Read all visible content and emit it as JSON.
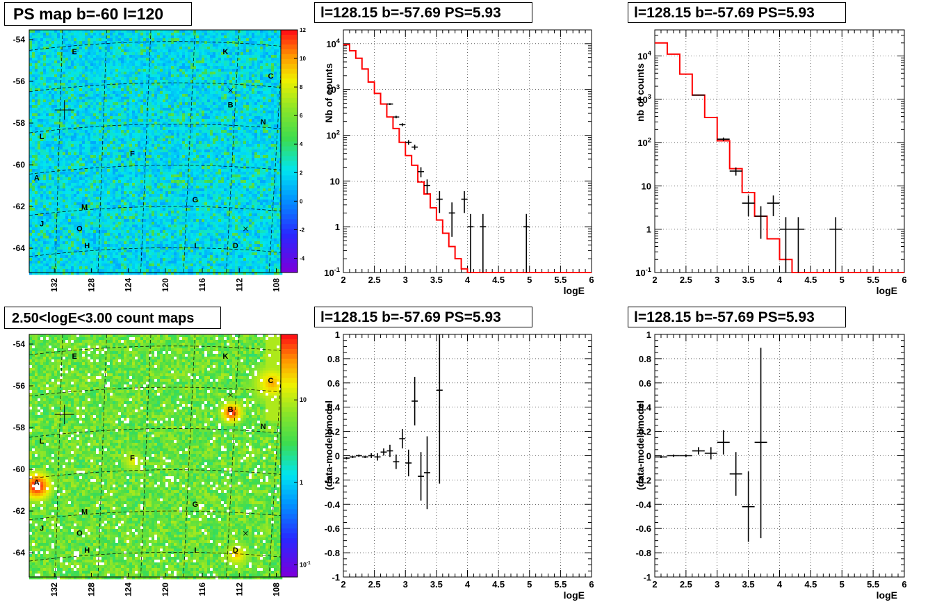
{
  "titles": {
    "ps_map": "PS map b=-60 l=120",
    "count_map": "2.50<logE<3.00 count maps",
    "spec_left": "l=128.15 b=-57.69 PS=5.93",
    "spec_right": "l=128.15 b=-57.69 PS=5.93",
    "res_left": "l=128.15 b=-57.69 PS=5.93",
    "res_right": "l=128.15 b=-57.69 PS=5.93"
  },
  "colors": {
    "model_line": "#ff0000",
    "data_marker": "#000000",
    "grid": "#000000"
  },
  "chart_data": [
    {
      "id": "ps_map",
      "type": "heatmap",
      "title": "PS map b=-60 l=120",
      "x_ticks": [
        "132",
        "128",
        "124",
        "120",
        "116",
        "112",
        "108"
      ],
      "y_ticks": [
        "-54",
        "-56",
        "-58",
        "-60",
        "-62",
        "-64"
      ],
      "colorbar_ticks": [
        "12",
        "10",
        "8",
        "6",
        "4",
        "2",
        "0",
        "-2",
        "-4"
      ],
      "colorbar_range": [
        -5,
        12
      ],
      "source_labels": [
        "E",
        "K",
        "C",
        "B",
        "N",
        "L",
        "F",
        "A",
        "G",
        "M",
        "J",
        "O",
        "H",
        "I",
        "D"
      ],
      "markers": [
        "cross",
        "x",
        "x"
      ]
    },
    {
      "id": "count_map",
      "type": "heatmap",
      "title": "2.50<logE<3.00 count maps",
      "x_ticks": [
        "132",
        "128",
        "124",
        "120",
        "116",
        "112",
        "108"
      ],
      "y_ticks": [
        "-54",
        "-56",
        "-58",
        "-60",
        "-62",
        "-64"
      ],
      "colorbar_ticks": [
        "10",
        "1",
        "10^{-1}"
      ],
      "colorbar_scale": "log",
      "source_labels": [
        "E",
        "K",
        "C",
        "B",
        "N",
        "L",
        "F",
        "A",
        "G",
        "M",
        "J",
        "O",
        "H",
        "I",
        "D"
      ],
      "markers": [
        "cross",
        "x",
        "x"
      ]
    },
    {
      "id": "spec_left",
      "type": "line",
      "title": "l=128.15 b=-57.69 PS=5.93",
      "xlabel": "logE",
      "ylabel": "Nb of counts",
      "xlim": [
        2,
        6
      ],
      "ylim": [
        0.1,
        20000
      ],
      "y_scale": "log",
      "x_ticks": [
        "2",
        "2.5",
        "3",
        "3.5",
        "4",
        "4.5",
        "5",
        "5.5",
        "6"
      ],
      "y_ticks": [
        "10^{-1}",
        "1",
        "10",
        "10^{2}",
        "10^{3}",
        "10^{4}"
      ],
      "model_step": {
        "edges": [
          2.0,
          2.1,
          2.2,
          2.3,
          2.4,
          2.5,
          2.6,
          2.7,
          2.8,
          2.9,
          3.0,
          3.1,
          3.2,
          3.3,
          3.4,
          3.5,
          3.6,
          3.7,
          3.8,
          3.9,
          4.0,
          4.1,
          6.0
        ],
        "values": [
          9500,
          7000,
          4800,
          2800,
          1450,
          820,
          480,
          250,
          140,
          70,
          36,
          22,
          9.5,
          5.2,
          2.6,
          1.4,
          0.72,
          0.37,
          0.2,
          0.12,
          0.1,
          0.1
        ]
      },
      "data_points": [
        {
          "x": 2.75,
          "y": 480,
          "xerr": 0.05,
          "yerr": [
            22,
            22
          ]
        },
        {
          "x": 2.85,
          "y": 250,
          "xerr": 0.05,
          "yerr": [
            16,
            16
          ]
        },
        {
          "x": 2.95,
          "y": 170,
          "xerr": 0.05,
          "yerr": [
            13,
            13
          ]
        },
        {
          "x": 3.05,
          "y": 70,
          "xerr": 0.05,
          "yerr": [
            8,
            8
          ]
        },
        {
          "x": 3.15,
          "y": 55,
          "xerr": 0.05,
          "yerr": [
            7,
            7
          ]
        },
        {
          "x": 3.25,
          "y": 16,
          "xerr": 0.05,
          "yerr": [
            4,
            4
          ]
        },
        {
          "x": 3.35,
          "y": 8,
          "xerr": 0.05,
          "yerr": [
            2.8,
            2.8
          ]
        },
        {
          "x": 3.55,
          "y": 4,
          "xerr": 0.05,
          "yerr": [
            2,
            2
          ]
        },
        {
          "x": 3.75,
          "y": 2,
          "xerr": 0.05,
          "yerr": [
            1.4,
            1.4
          ]
        },
        {
          "x": 3.95,
          "y": 4,
          "xerr": 0.05,
          "yerr": [
            2,
            2
          ]
        },
        {
          "x": 4.05,
          "y": 1,
          "xerr": 0.05,
          "yerr": [
            0.9,
            0.9
          ]
        },
        {
          "x": 4.25,
          "y": 1,
          "xerr": 0.05,
          "yerr": [
            0.9,
            0.9
          ]
        },
        {
          "x": 4.95,
          "y": 1,
          "xerr": 0.05,
          "yerr": [
            0.9,
            0.9
          ]
        }
      ]
    },
    {
      "id": "spec_right",
      "type": "line",
      "title": "l=128.15 b=-57.69 PS=5.93",
      "xlabel": "logE",
      "ylabel": "nb of counts",
      "xlim": [
        2,
        6
      ],
      "ylim": [
        0.1,
        40000
      ],
      "y_scale": "log",
      "x_ticks": [
        "2",
        "2.5",
        "3",
        "3.5",
        "4",
        "4.5",
        "5",
        "5.5",
        "6"
      ],
      "y_ticks": [
        "10^{-1}",
        "1",
        "10",
        "10^{2}",
        "10^{3}",
        "10^{4}"
      ],
      "model_step": {
        "edges": [
          2.0,
          2.2,
          2.4,
          2.6,
          2.8,
          3.0,
          3.2,
          3.4,
          3.6,
          3.8,
          4.0,
          4.2,
          6.0
        ],
        "values": [
          20000,
          11000,
          3800,
          1250,
          380,
          110,
          25,
          7,
          2,
          0.6,
          0.2,
          0.1
        ]
      },
      "data_points": [
        {
          "x": 2.7,
          "y": 1250,
          "xerr": 0.1,
          "yerr": [
            35,
            35
          ]
        },
        {
          "x": 3.1,
          "y": 120,
          "xerr": 0.1,
          "yerr": [
            11,
            11
          ]
        },
        {
          "x": 3.3,
          "y": 22,
          "xerr": 0.1,
          "yerr": [
            4.7,
            4.7
          ]
        },
        {
          "x": 3.5,
          "y": 4,
          "xerr": 0.1,
          "yerr": [
            2,
            2
          ]
        },
        {
          "x": 3.7,
          "y": 2,
          "xerr": 0.1,
          "yerr": [
            1.4,
            1.4
          ]
        },
        {
          "x": 3.9,
          "y": 4,
          "xerr": 0.1,
          "yerr": [
            2,
            2
          ]
        },
        {
          "x": 4.1,
          "y": 1,
          "xerr": 0.1,
          "yerr": [
            0.9,
            0.9
          ]
        },
        {
          "x": 4.3,
          "y": 1,
          "xerr": 0.1,
          "yerr": [
            0.9,
            0.9
          ]
        },
        {
          "x": 4.9,
          "y": 1,
          "xerr": 0.1,
          "yerr": [
            0.9,
            0.9
          ]
        }
      ]
    },
    {
      "id": "res_left",
      "type": "scatter",
      "title": "l=128.15 b=-57.69 PS=5.93",
      "xlabel": "logE",
      "ylabel": "(data-model)/model",
      "xlim": [
        2,
        6
      ],
      "ylim": [
        -1,
        1
      ],
      "x_ticks": [
        "2",
        "2.5",
        "3",
        "3.5",
        "4",
        "4.5",
        "5",
        "5.5",
        "6"
      ],
      "y_ticks": [
        "-1",
        "-0.8",
        "-0.6",
        "-0.4",
        "-0.2",
        "0",
        "0.2",
        "0.4",
        "0.6",
        "0.8",
        "1"
      ],
      "data_points": [
        {
          "x": 2.05,
          "y": -0.02,
          "xerr": 0.05,
          "yerr": 0.01
        },
        {
          "x": 2.15,
          "y": -0.01,
          "xerr": 0.05,
          "yerr": 0.01
        },
        {
          "x": 2.25,
          "y": 0.0,
          "xerr": 0.05,
          "yerr": 0.01
        },
        {
          "x": 2.35,
          "y": -0.01,
          "xerr": 0.05,
          "yerr": 0.01
        },
        {
          "x": 2.45,
          "y": 0.0,
          "xerr": 0.05,
          "yerr": 0.02
        },
        {
          "x": 2.55,
          "y": -0.01,
          "xerr": 0.05,
          "yerr": 0.03
        },
        {
          "x": 2.65,
          "y": 0.03,
          "xerr": 0.05,
          "yerr": 0.03
        },
        {
          "x": 2.75,
          "y": 0.04,
          "xerr": 0.05,
          "yerr": 0.05
        },
        {
          "x": 2.85,
          "y": -0.05,
          "xerr": 0.05,
          "yerr": 0.06
        },
        {
          "x": 2.95,
          "y": 0.14,
          "xerr": 0.05,
          "yerr": 0.08
        },
        {
          "x": 3.05,
          "y": -0.06,
          "xerr": 0.05,
          "yerr": 0.11
        },
        {
          "x": 3.15,
          "y": 0.45,
          "xerr": 0.05,
          "yerr": 0.2
        },
        {
          "x": 3.25,
          "y": -0.17,
          "xerr": 0.05,
          "yerr": 0.2
        },
        {
          "x": 3.35,
          "y": -0.14,
          "xerr": 0.05,
          "yerr": 0.3
        },
        {
          "x": 3.55,
          "y": 0.54,
          "xerr": 0.05,
          "yerr": [
            0.77,
            0.46
          ]
        }
      ]
    },
    {
      "id": "res_right",
      "type": "scatter",
      "title": "l=128.15 b=-57.69 PS=5.93",
      "xlabel": "logE",
      "ylabel": "(data-model)/model",
      "xlim": [
        2,
        6
      ],
      "ylim": [
        -1,
        1
      ],
      "x_ticks": [
        "2",
        "2.5",
        "3",
        "3.5",
        "4",
        "4.5",
        "5",
        "5.5",
        "6"
      ],
      "y_ticks": [
        "-1",
        "-0.8",
        "-0.6",
        "-0.4",
        "-0.2",
        "0",
        "0.2",
        "0.4",
        "0.6",
        "0.8",
        "1"
      ],
      "data_points": [
        {
          "x": 2.1,
          "y": -0.01,
          "xerr": 0.1,
          "yerr": 0.01
        },
        {
          "x": 2.3,
          "y": 0.0,
          "xerr": 0.1,
          "yerr": 0.01
        },
        {
          "x": 2.5,
          "y": 0.0,
          "xerr": 0.1,
          "yerr": 0.01
        },
        {
          "x": 2.7,
          "y": 0.04,
          "xerr": 0.1,
          "yerr": 0.03
        },
        {
          "x": 2.9,
          "y": 0.02,
          "xerr": 0.1,
          "yerr": 0.05
        },
        {
          "x": 3.1,
          "y": 0.11,
          "xerr": 0.1,
          "yerr": 0.1
        },
        {
          "x": 3.3,
          "y": -0.15,
          "xerr": 0.1,
          "yerr": 0.18
        },
        {
          "x": 3.5,
          "y": -0.42,
          "xerr": 0.1,
          "yerr": 0.29
        },
        {
          "x": 3.7,
          "y": 0.11,
          "xerr": 0.1,
          "yerr": [
            0.79,
            0.78
          ]
        }
      ]
    }
  ]
}
